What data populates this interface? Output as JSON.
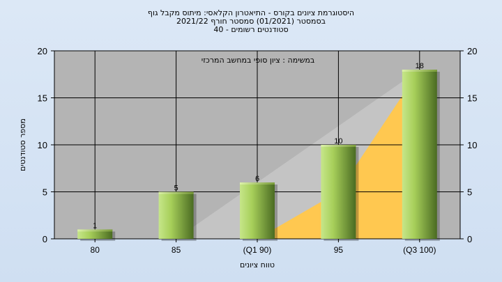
{
  "chart_data": {
    "type": "bar",
    "title_lines": [
      "היסטוגרמת ציונים בקורס - התיאטרון הקלאסי: מיתוס מקבל גוף",
      "בסמסטר  (01/2021)  סמסטר חורף 2021/22",
      "סטודנטים רשומים - 40"
    ],
    "annotation": "במשימה : ציון סופי במחשב המרכזי",
    "categories": [
      "80",
      "85",
      "(Q1 90)",
      "95",
      "(Q3 100)"
    ],
    "values": [
      1,
      5,
      6,
      10,
      18
    ],
    "data_labels": [
      "1",
      "5",
      "6",
      "10",
      "18"
    ],
    "cumulative_area": [
      0,
      0,
      0,
      5,
      18
    ],
    "xlabel": "טווח ציונים",
    "ylabel": "מספר סטודנטים",
    "ylim": [
      0,
      20
    ],
    "yticks": [
      "0",
      "5",
      "10",
      "15",
      "20"
    ],
    "grid": true,
    "colors": {
      "plot_bg": "#b4b4b4",
      "bar_light": "#c6e68a",
      "bar_dark": "#4a6b22",
      "area_fill": "#ffc850",
      "grey_wedge": "#c4c4c4"
    }
  }
}
